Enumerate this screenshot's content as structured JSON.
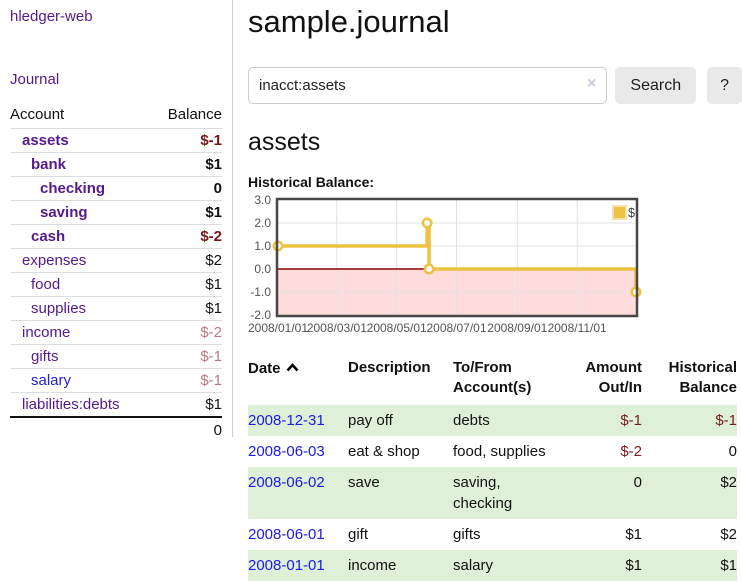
{
  "colors": {
    "accent_purple": "#551a8b",
    "link_blue": "#1a1ae6",
    "negative_strong": "#7c1414",
    "negative_muted": "#bb7a7a",
    "row_stripe_green": "#dff0d8",
    "chart_gold": "#edc240",
    "chart_negative_fill": "#ffdcdc",
    "chart_zero_line": "#8b0000"
  },
  "sidebar": {
    "app_title": "hledger-web",
    "journal_link": "Journal",
    "accounts_table": {
      "headers": [
        "Account",
        "Balance"
      ],
      "rows": [
        {
          "account": "assets",
          "balance": "$-1",
          "depth": 1,
          "bold": true,
          "tone": "neg-strong",
          "link": "purple"
        },
        {
          "account": "bank",
          "balance": "$1",
          "depth": 2,
          "bold": true,
          "tone": "plain",
          "link": "purple"
        },
        {
          "account": "checking",
          "balance": "0",
          "depth": 3,
          "bold": true,
          "tone": "plain",
          "link": "purple"
        },
        {
          "account": "saving",
          "balance": "$1",
          "depth": 3,
          "bold": true,
          "tone": "plain",
          "link": "purple"
        },
        {
          "account": "cash",
          "balance": "$-2",
          "depth": 2,
          "bold": true,
          "tone": "neg-strong",
          "link": "purple"
        },
        {
          "account": "expenses",
          "balance": "$2",
          "depth": 1,
          "bold": false,
          "tone": "plain",
          "link": "purple"
        },
        {
          "account": "food",
          "balance": "$1",
          "depth": 2,
          "bold": false,
          "tone": "plain",
          "link": "purple"
        },
        {
          "account": "supplies",
          "balance": "$1",
          "depth": 2,
          "bold": false,
          "tone": "plain",
          "link": "purple"
        },
        {
          "account": "income",
          "balance": "$-2",
          "depth": 1,
          "bold": false,
          "tone": "neg-muted",
          "link": "purple"
        },
        {
          "account": "gifts",
          "balance": "$-1",
          "depth": 2,
          "bold": false,
          "tone": "neg-muted",
          "link": "purple"
        },
        {
          "account": "salary",
          "balance": "$-1",
          "depth": 2,
          "bold": false,
          "tone": "neg-muted",
          "link": "blue"
        },
        {
          "account": "liabilities:debts",
          "balance": "$1",
          "depth": 1,
          "bold": false,
          "tone": "plain",
          "link": "purple"
        }
      ],
      "total": "0"
    }
  },
  "header": {
    "title": "sample.journal"
  },
  "search": {
    "value": "inacct:assets",
    "clear_icon": "×",
    "button_label": "Search",
    "help_label": "?"
  },
  "account_page": {
    "title": "assets",
    "section_label": "Historical Balance:"
  },
  "chart_data": {
    "type": "line",
    "step": true,
    "title": "Historical Balance",
    "series": [
      {
        "name": "$",
        "color": "#edc240",
        "points": [
          [
            "2008-01-01",
            1
          ],
          [
            "2008-06-01",
            2
          ],
          [
            "2008-06-03",
            0
          ],
          [
            "2008-12-31",
            -1
          ]
        ]
      }
    ],
    "xlim": [
      "2008-01-01",
      "2008-12-31"
    ],
    "ylim": [
      -2,
      3
    ],
    "yticks": [
      "3.0",
      "2.0",
      "1.0",
      "0.0",
      "-1.0",
      "-2.0"
    ],
    "xticks": [
      "2008/01/01",
      "2008/03/01",
      "2008/05/01",
      "2008/07/01",
      "2008/09/01",
      "2008/11/01"
    ],
    "grid": true,
    "legend": [
      "$"
    ],
    "legend_position": "top-right",
    "negative_region_color": "#ffdcdc",
    "zero_line_color": "#8b0000"
  },
  "register": {
    "headers": {
      "date": "Date",
      "description": "Description",
      "accounts": "To/From Account(s)",
      "amount": "Amount Out/In",
      "balance": "Historical Balance"
    },
    "sort": {
      "column": "date",
      "direction": "ascending"
    },
    "rows": [
      {
        "date": "2008-12-31",
        "description": "pay off",
        "accounts": "debts",
        "amount": "$-1",
        "balance": "$-1"
      },
      {
        "date": "2008-06-03",
        "description": "eat & shop",
        "accounts": "food, supplies",
        "amount": "$-2",
        "balance": "0"
      },
      {
        "date": "2008-06-02",
        "description": "save",
        "accounts": "saving, checking",
        "amount": "0",
        "balance": "$2"
      },
      {
        "date": "2008-06-01",
        "description": "gift",
        "accounts": "gifts",
        "amount": "$1",
        "balance": "$2"
      },
      {
        "date": "2008-01-01",
        "description": "income",
        "accounts": "salary",
        "amount": "$1",
        "balance": "$1"
      }
    ]
  }
}
